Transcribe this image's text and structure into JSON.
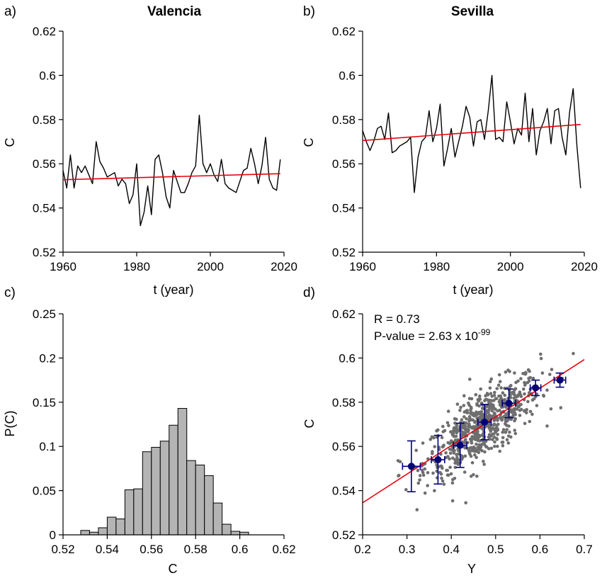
{
  "chart_data": [
    {
      "panel": "a)",
      "type": "line",
      "title": "Valencia",
      "xlabel": "t (year)",
      "ylabel": "C",
      "xlim": [
        1960,
        2020
      ],
      "ylim": [
        0.52,
        0.62
      ],
      "xticks": [
        1960,
        1980,
        2000,
        2020
      ],
      "xtick_labels": [
        "1960",
        "1980",
        "2000",
        "2020"
      ],
      "yticks": [
        0.52,
        0.54,
        0.56,
        0.58,
        0.6,
        0.62
      ],
      "ytick_labels": [
        "0.52",
        "0.54",
        "0.56",
        "0.58",
        "0.6",
        "0.62"
      ],
      "grid": false,
      "series": [
        {
          "color": "#000000",
          "x": [
            1960,
            1961,
            1962,
            1963,
            1964,
            1965,
            1966,
            1967,
            1968,
            1969,
            1970,
            1971,
            1972,
            1973,
            1974,
            1975,
            1976,
            1977,
            1978,
            1979,
            1980,
            1981,
            1982,
            1983,
            1984,
            1985,
            1986,
            1987,
            1988,
            1989,
            1990,
            1991,
            1992,
            1993,
            1994,
            1995,
            1996,
            1997,
            1998,
            1999,
            2000,
            2001,
            2002,
            2003,
            2004,
            2005,
            2006,
            2007,
            2008,
            2009,
            2010,
            2011,
            2012,
            2013,
            2014,
            2015,
            2016,
            2017,
            2018,
            2019
          ],
          "y": [
            0.557,
            0.549,
            0.564,
            0.549,
            0.559,
            0.556,
            0.559,
            0.555,
            0.551,
            0.57,
            0.561,
            0.558,
            0.554,
            0.555,
            0.556,
            0.55,
            0.553,
            0.551,
            0.542,
            0.546,
            0.56,
            0.532,
            0.538,
            0.55,
            0.537,
            0.562,
            0.564,
            0.556,
            0.545,
            0.54,
            0.557,
            0.552,
            0.547,
            0.547,
            0.551,
            0.556,
            0.559,
            0.582,
            0.56,
            0.556,
            0.56,
            0.555,
            0.552,
            0.562,
            0.551,
            0.549,
            0.548,
            0.547,
            0.552,
            0.557,
            0.558,
            0.567,
            0.56,
            0.551,
            0.559,
            0.572,
            0.553,
            0.549,
            0.548,
            0.562
          ]
        },
        {
          "color": "#e8000b",
          "x": [
            1960,
            2019
          ],
          "y": [
            0.5528,
            0.5555
          ]
        }
      ]
    },
    {
      "panel": "b)",
      "type": "line",
      "title": "Sevilla",
      "xlabel": "t (year)",
      "ylabel": "C",
      "xlim": [
        1960,
        2020
      ],
      "ylim": [
        0.52,
        0.62
      ],
      "xticks": [
        1960,
        1980,
        2000,
        2020
      ],
      "xtick_labels": [
        "1960",
        "1980",
        "2000",
        "2020"
      ],
      "yticks": [
        0.52,
        0.54,
        0.56,
        0.58,
        0.6,
        0.62
      ],
      "ytick_labels": [
        "0.52",
        "0.54",
        "0.56",
        "0.58",
        "0.6",
        "0.62"
      ],
      "grid": false,
      "series": [
        {
          "color": "#000000",
          "x": [
            1960,
            1961,
            1962,
            1963,
            1964,
            1965,
            1966,
            1967,
            1968,
            1969,
            1970,
            1971,
            1972,
            1973,
            1974,
            1975,
            1976,
            1977,
            1978,
            1979,
            1980,
            1981,
            1982,
            1983,
            1984,
            1985,
            1986,
            1987,
            1988,
            1989,
            1990,
            1991,
            1992,
            1993,
            1994,
            1995,
            1996,
            1997,
            1998,
            1999,
            2000,
            2001,
            2002,
            2003,
            2004,
            2005,
            2006,
            2007,
            2008,
            2009,
            2010,
            2011,
            2012,
            2013,
            2014,
            2015,
            2016,
            2017,
            2018,
            2019
          ],
          "y": [
            0.575,
            0.57,
            0.566,
            0.57,
            0.576,
            0.577,
            0.571,
            0.583,
            0.565,
            0.566,
            0.568,
            0.569,
            0.57,
            0.572,
            0.547,
            0.563,
            0.57,
            0.572,
            0.584,
            0.57,
            0.576,
            0.587,
            0.559,
            0.567,
            0.576,
            0.563,
            0.57,
            0.577,
            0.586,
            0.581,
            0.568,
            0.579,
            0.58,
            0.571,
            0.584,
            0.6,
            0.571,
            0.572,
            0.57,
            0.588,
            0.579,
            0.569,
            0.576,
            0.573,
            0.592,
            0.57,
            0.585,
            0.564,
            0.575,
            0.579,
            0.585,
            0.569,
            0.584,
            0.585,
            0.572,
            0.564,
            0.583,
            0.594,
            0.568,
            0.549
          ]
        },
        {
          "color": "#e8000b",
          "x": [
            1960,
            2019
          ],
          "y": [
            0.5705,
            0.5778
          ]
        }
      ]
    },
    {
      "panel": "c)",
      "type": "bar",
      "xlabel": "C",
      "ylabel": "P(C)",
      "xlim": [
        0.52,
        0.62
      ],
      "ylim": [
        0,
        0.25
      ],
      "xticks": [
        0.52,
        0.54,
        0.56,
        0.58,
        0.6,
        0.62
      ],
      "xtick_labels": [
        "0.52",
        "0.54",
        "0.56",
        "0.58",
        "0.6",
        "0.62"
      ],
      "yticks": [
        0,
        0.05,
        0.1,
        0.15,
        0.2,
        0.25
      ],
      "ytick_labels": [
        "0",
        "0.05",
        "0.1",
        "0.15",
        "0.2",
        "0.25"
      ],
      "grid": false,
      "bar_color": "#b4b4b4",
      "bin_width": 0.004,
      "bin_starts": [
        0.528,
        0.532,
        0.536,
        0.54,
        0.544,
        0.548,
        0.552,
        0.556,
        0.56,
        0.564,
        0.568,
        0.572,
        0.576,
        0.58,
        0.584,
        0.588,
        0.592,
        0.596,
        0.6
      ],
      "values": [
        0.005,
        0.003,
        0.008,
        0.02,
        0.018,
        0.051,
        0.052,
        0.094,
        0.099,
        0.106,
        0.124,
        0.143,
        0.084,
        0.079,
        0.067,
        0.036,
        0.012,
        0.004,
        0.003
      ]
    },
    {
      "panel": "d)",
      "type": "scatter",
      "xlabel": "Υ",
      "ylabel": "C",
      "xlim": [
        0.2,
        0.7
      ],
      "ylim": [
        0.52,
        0.62
      ],
      "xticks": [
        0.2,
        0.3,
        0.4,
        0.5,
        0.6,
        0.7
      ],
      "xtick_labels": [
        "0.2",
        "0.3",
        "0.4",
        "0.5",
        "0.6",
        "0.7"
      ],
      "yticks": [
        0.52,
        0.54,
        0.56,
        0.58,
        0.6,
        0.62
      ],
      "ytick_labels": [
        "0.52",
        "0.54",
        "0.56",
        "0.58",
        "0.6",
        "0.62"
      ],
      "grid": false,
      "annotation_r": "R = 0.73",
      "annotation_p": "P-value = 2.63 x 10",
      "annotation_p_exp": "-99",
      "scatter_color": "#6e6e6e",
      "scatter_count": 700,
      "binned_color": "#00007a",
      "binned": {
        "x": [
          0.31,
          0.37,
          0.42,
          0.475,
          0.53,
          0.59,
          0.645
        ],
        "y": [
          0.551,
          0.554,
          0.5605,
          0.571,
          0.5795,
          0.5865,
          0.59
        ],
        "xerr": [
          0.02,
          0.015,
          0.015,
          0.015,
          0.015,
          0.012,
          0.013
        ],
        "yerr": [
          0.0115,
          0.011,
          0.01,
          0.008,
          0.0065,
          0.0035,
          0.0032
        ]
      },
      "fit_color": "#e8000b",
      "fit": {
        "x": [
          0.2,
          0.7
        ],
        "y": [
          0.5345,
          0.5993
        ]
      }
    }
  ]
}
